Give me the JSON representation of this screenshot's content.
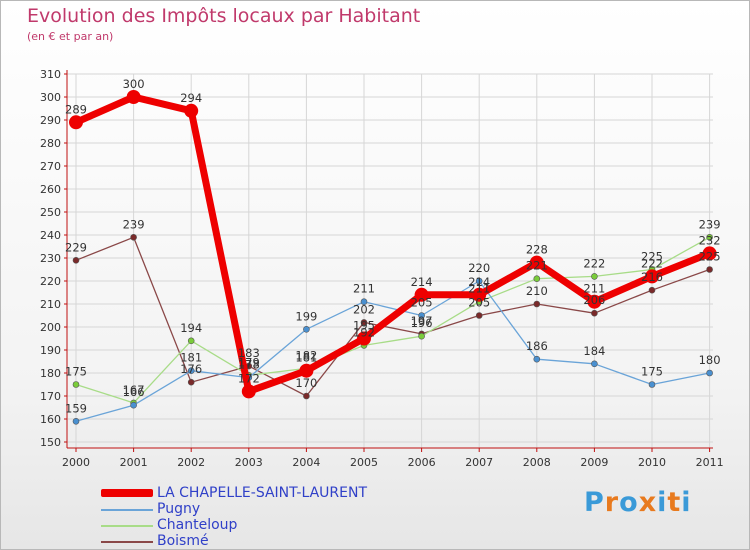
{
  "title": "Evolution des Impôts locaux par Habitant",
  "subtitle": "(en € et par an)",
  "brand": "Proxiti",
  "chart_data": {
    "type": "line",
    "title": "Evolution des Impôts locaux par Habitant",
    "subtitle": "(en € et par an)",
    "xlabel": "",
    "ylabel": "",
    "ylim": [
      150,
      310
    ],
    "yticks": [
      150,
      160,
      170,
      180,
      190,
      200,
      210,
      220,
      230,
      240,
      250,
      260,
      270,
      280,
      290,
      300,
      310
    ],
    "categories": [
      "2000",
      "2001",
      "2002",
      "2003",
      "2004",
      "2005",
      "2006",
      "2007",
      "2008",
      "2009",
      "2010",
      "2011"
    ],
    "grid": true,
    "legend_position": "bottom-left",
    "series": [
      {
        "name": "Boismé",
        "color": "#7a2a2a",
        "line_color": "#8a4848",
        "values": [
          229,
          239,
          176,
          183,
          170,
          202,
          197,
          205,
          210,
          206,
          216,
          225
        ],
        "labels": [
          "229",
          "239",
          "176",
          "183",
          "170",
          "202",
          "197",
          "205",
          "210",
          "206",
          "216",
          "225"
        ]
      },
      {
        "name": "Chanteloup",
        "color": "#7acc3a",
        "line_color": "#a8dc88",
        "values": [
          175,
          167,
          194,
          179,
          182,
          192,
          196,
          211,
          221,
          222,
          225,
          239
        ],
        "labels": [
          "175",
          "167",
          "194",
          "179",
          "182",
          "192",
          "196",
          "211",
          "221",
          "222",
          "225",
          "239"
        ]
      },
      {
        "name": "Pugny",
        "color": "#4a90d0",
        "line_color": "#6aa4d8",
        "values": [
          159,
          166,
          181,
          178,
          199,
          211,
          205,
          220,
          186,
          184,
          175,
          180
        ],
        "labels": [
          "159",
          "166",
          "181",
          "178",
          "199",
          "211",
          "205",
          "220",
          "186",
          "184",
          "175",
          "180"
        ]
      },
      {
        "name": "LA CHAPELLE-SAINT-LAURENT",
        "color": "#ee0000",
        "line_color": "#ee0000",
        "values": [
          289,
          300,
          294,
          172,
          181,
          195,
          214,
          214,
          228,
          211,
          222,
          232
        ],
        "labels": [
          "289",
          "300",
          "294",
          "172",
          "181",
          "195",
          "214",
          "214",
          "228",
          "211",
          "222",
          "232"
        ]
      }
    ]
  },
  "legend": [
    {
      "label": "LA CHAPELLE-SAINT-LAURENT",
      "color": "#ee0000"
    },
    {
      "label": "Pugny",
      "color": "#6aa4d8"
    },
    {
      "label": "Chanteloup",
      "color": "#a8dc88"
    },
    {
      "label": "Boismé",
      "color": "#8a4848"
    }
  ],
  "brand_colors": [
    "#3a9ad8",
    "#e87a1e",
    "#3a9ad8",
    "#e87a1e",
    "#3a9ad8",
    "#e87a1e",
    "#3a9ad8"
  ]
}
